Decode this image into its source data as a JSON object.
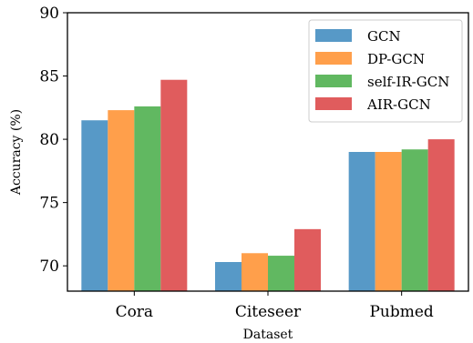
{
  "chart_data": {
    "type": "bar",
    "categories": [
      "Cora",
      "Citeseer",
      "Pubmed"
    ],
    "series": [
      {
        "name": "GCN",
        "values": [
          81.5,
          70.3,
          79.0
        ],
        "color": "#5799c7"
      },
      {
        "name": "DP-GCN",
        "values": [
          82.3,
          71.0,
          79.0
        ],
        "color": "#ff9f4b"
      },
      {
        "name": "self-IR-GCN",
        "values": [
          82.6,
          70.8,
          79.2
        ],
        "color": "#61b861"
      },
      {
        "name": "AIR-GCN",
        "values": [
          84.7,
          72.9,
          80.0
        ],
        "color": "#e05c5d"
      }
    ],
    "title": "",
    "xlabel": "Dataset",
    "ylabel": "Accuracy (%)",
    "ylim": [
      68,
      90
    ],
    "yticks": [
      70,
      75,
      80,
      85,
      90
    ],
    "grid": false,
    "legend_position": "top-right"
  }
}
